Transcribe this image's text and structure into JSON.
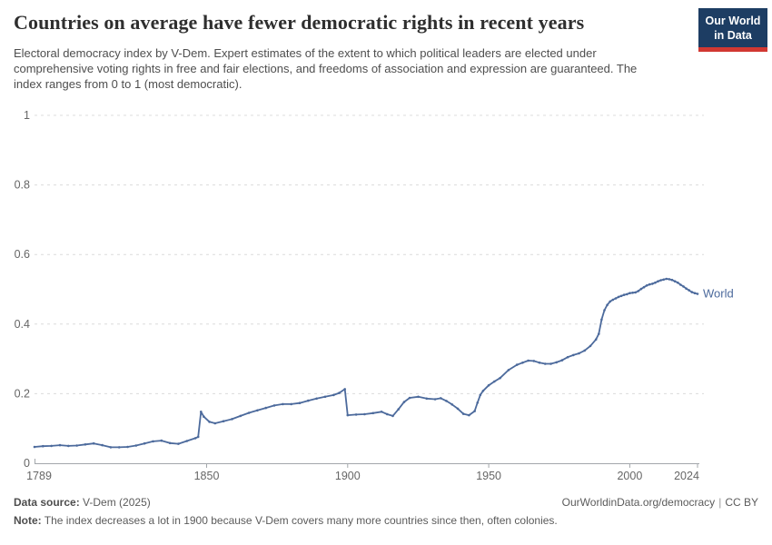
{
  "header": {
    "title": "Countries on average have fewer democratic rights in recent years",
    "subtitle": "Electoral democracy index by V-Dem. Expert estimates of the extent to which political leaders are elected under comprehensive voting rights in free and fair elections, and freedoms of association and expression are guaranteed. The index ranges from 0 to 1 (most democratic).",
    "logo_line1": "Our World",
    "logo_line2": "in Data",
    "logo_colors": {
      "background": "#1d3d63",
      "bar": "#d13832",
      "text": "#ffffff"
    }
  },
  "chart_data": {
    "type": "line",
    "title": "Countries on average have fewer democratic rights in recent years",
    "xlabel": "",
    "ylabel": "",
    "xlim": [
      1789,
      2024
    ],
    "ylim": [
      0,
      1
    ],
    "grid": "horizontal-dashed",
    "legend_position": "end-of-line",
    "y_ticks": [
      "0",
      "0.2",
      "0.4",
      "0.6",
      "0.8",
      "1"
    ],
    "y_tick_values": [
      0,
      0.2,
      0.4,
      0.6,
      0.8,
      1
    ],
    "x_ticks": [
      "1789",
      "1850",
      "1900",
      "1950",
      "2000",
      "2024"
    ],
    "x_tick_values": [
      1789,
      1850,
      1900,
      1950,
      2000,
      2024
    ],
    "series": [
      {
        "name": "World",
        "color": "#4C6A9C",
        "points": [
          [
            1789,
            0.047
          ],
          [
            1792,
            0.049
          ],
          [
            1795,
            0.05
          ],
          [
            1798,
            0.052
          ],
          [
            1801,
            0.05
          ],
          [
            1804,
            0.051
          ],
          [
            1807,
            0.054
          ],
          [
            1810,
            0.057
          ],
          [
            1813,
            0.052
          ],
          [
            1816,
            0.046
          ],
          [
            1819,
            0.046
          ],
          [
            1822,
            0.047
          ],
          [
            1825,
            0.051
          ],
          [
            1828,
            0.057
          ],
          [
            1831,
            0.063
          ],
          [
            1834,
            0.065
          ],
          [
            1837,
            0.058
          ],
          [
            1840,
            0.056
          ],
          [
            1843,
            0.064
          ],
          [
            1846,
            0.072
          ],
          [
            1847,
            0.076
          ],
          [
            1848,
            0.148
          ],
          [
            1849,
            0.134
          ],
          [
            1851,
            0.119
          ],
          [
            1853,
            0.115
          ],
          [
            1856,
            0.121
          ],
          [
            1859,
            0.127
          ],
          [
            1862,
            0.136
          ],
          [
            1865,
            0.145
          ],
          [
            1868,
            0.152
          ],
          [
            1871,
            0.159
          ],
          [
            1874,
            0.166
          ],
          [
            1877,
            0.17
          ],
          [
            1880,
            0.17
          ],
          [
            1883,
            0.173
          ],
          [
            1886,
            0.18
          ],
          [
            1889,
            0.186
          ],
          [
            1892,
            0.191
          ],
          [
            1895,
            0.196
          ],
          [
            1897,
            0.202
          ],
          [
            1899,
            0.213
          ],
          [
            1900,
            0.138
          ],
          [
            1903,
            0.14
          ],
          [
            1906,
            0.141
          ],
          [
            1909,
            0.144
          ],
          [
            1912,
            0.148
          ],
          [
            1914,
            0.141
          ],
          [
            1916,
            0.136
          ],
          [
            1918,
            0.155
          ],
          [
            1920,
            0.176
          ],
          [
            1922,
            0.188
          ],
          [
            1925,
            0.191
          ],
          [
            1928,
            0.186
          ],
          [
            1931,
            0.184
          ],
          [
            1933,
            0.187
          ],
          [
            1935,
            0.179
          ],
          [
            1937,
            0.169
          ],
          [
            1939,
            0.157
          ],
          [
            1941,
            0.142
          ],
          [
            1943,
            0.138
          ],
          [
            1945,
            0.15
          ],
          [
            1946,
            0.174
          ],
          [
            1947,
            0.196
          ],
          [
            1948,
            0.208
          ],
          [
            1950,
            0.224
          ],
          [
            1952,
            0.235
          ],
          [
            1954,
            0.245
          ],
          [
            1957,
            0.268
          ],
          [
            1960,
            0.283
          ],
          [
            1962,
            0.289
          ],
          [
            1964,
            0.295
          ],
          [
            1966,
            0.294
          ],
          [
            1968,
            0.289
          ],
          [
            1970,
            0.286
          ],
          [
            1972,
            0.286
          ],
          [
            1974,
            0.29
          ],
          [
            1976,
            0.296
          ],
          [
            1978,
            0.305
          ],
          [
            1980,
            0.311
          ],
          [
            1982,
            0.316
          ],
          [
            1984,
            0.324
          ],
          [
            1986,
            0.337
          ],
          [
            1988,
            0.356
          ],
          [
            1989,
            0.372
          ],
          [
            1990,
            0.413
          ],
          [
            1991,
            0.44
          ],
          [
            1992,
            0.455
          ],
          [
            1993,
            0.465
          ],
          [
            1994,
            0.47
          ],
          [
            1995,
            0.474
          ],
          [
            1996,
            0.478
          ],
          [
            1997,
            0.481
          ],
          [
            1998,
            0.484
          ],
          [
            1999,
            0.486
          ],
          [
            2000,
            0.489
          ],
          [
            2001,
            0.49
          ],
          [
            2002,
            0.491
          ],
          [
            2003,
            0.495
          ],
          [
            2004,
            0.501
          ],
          [
            2005,
            0.506
          ],
          [
            2006,
            0.511
          ],
          [
            2007,
            0.514
          ],
          [
            2008,
            0.516
          ],
          [
            2009,
            0.519
          ],
          [
            2010,
            0.523
          ],
          [
            2011,
            0.526
          ],
          [
            2012,
            0.528
          ],
          [
            2013,
            0.53
          ],
          [
            2014,
            0.529
          ],
          [
            2015,
            0.527
          ],
          [
            2016,
            0.523
          ],
          [
            2017,
            0.519
          ],
          [
            2018,
            0.513
          ],
          [
            2019,
            0.508
          ],
          [
            2020,
            0.502
          ],
          [
            2021,
            0.497
          ],
          [
            2022,
            0.492
          ],
          [
            2023,
            0.489
          ],
          [
            2024,
            0.487
          ]
        ]
      }
    ]
  },
  "footer": {
    "data_source_label": "Data source:",
    "data_source_value": " V-Dem (2025)",
    "url_text": "OurWorldinData.org/democracy",
    "divider": "|",
    "license_text": "CC BY",
    "note_label": "Note:",
    "note_text": " The index decreases a lot in 1900 because V-Dem covers many more countries since then, often colonies."
  }
}
